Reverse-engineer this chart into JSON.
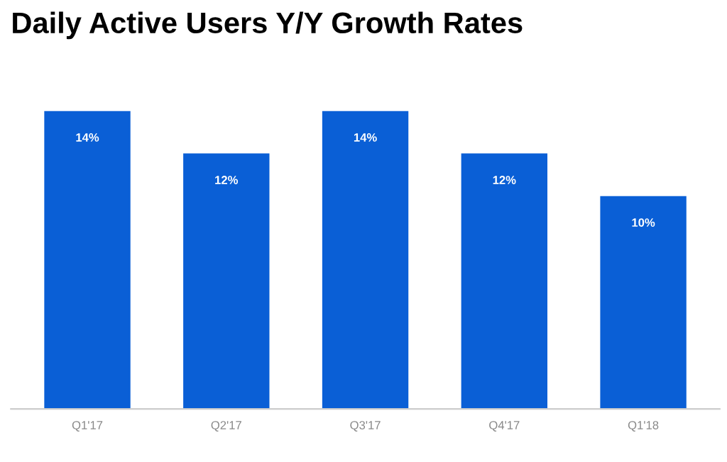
{
  "chart_data": {
    "type": "bar",
    "title": "Daily Active Users Y/Y Growth Rates",
    "categories": [
      "Q1'17",
      "Q2'17",
      "Q3'17",
      "Q4'17",
      "Q1'18"
    ],
    "values": [
      14,
      12,
      14,
      12,
      10
    ],
    "value_labels": [
      "14%",
      "12%",
      "14%",
      "12%",
      "10%"
    ],
    "color": "#0a5fd6",
    "grid": false,
    "legend": false
  }
}
